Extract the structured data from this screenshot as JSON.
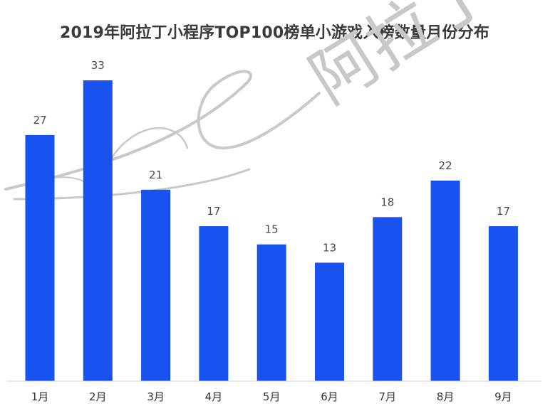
{
  "chart_data": {
    "type": "bar",
    "title": "2019年阿拉丁小程序TOP100榜单小游戏入榜数量月份分布",
    "categories": [
      "1月",
      "2月",
      "3月",
      "4月",
      "5月",
      "6月",
      "7月",
      "8月",
      "9月"
    ],
    "values": [
      27,
      33,
      21,
      17,
      15,
      13,
      18,
      22,
      17
    ],
    "xlabel": "",
    "ylabel": "",
    "ylim": [
      0,
      33
    ],
    "grid": false,
    "legend": "none",
    "colors": {
      "bar": "#1953ef",
      "title": "#3a3a3a",
      "value_label": "#4a4a4a"
    }
  },
  "watermark": {
    "text": "阿拉丁"
  }
}
